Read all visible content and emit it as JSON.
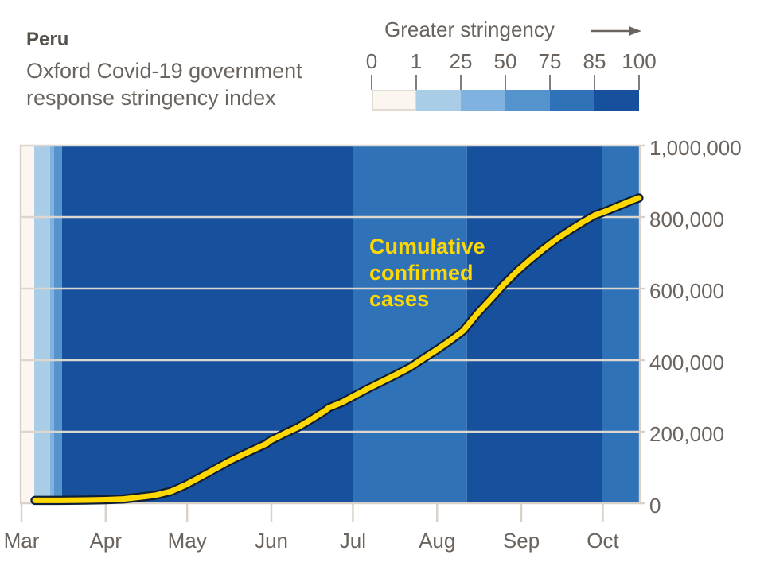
{
  "header": {
    "title": "Peru",
    "subtitle": "Oxford Covid-19 government\nresponse stringency index"
  },
  "legend": {
    "title": "Greater stringency",
    "arrow_icon": "right-arrow",
    "tick_labels": [
      "0",
      "1",
      "25",
      "50",
      "75",
      "85",
      "100"
    ],
    "segments": [
      {
        "range": "0-1",
        "color": "#fbf6ef",
        "border": "#e3dacf"
      },
      {
        "range": "1-25",
        "color": "#a9cde6"
      },
      {
        "range": "25-50",
        "color": "#7fb2de"
      },
      {
        "range": "50-75",
        "color": "#5593cd"
      },
      {
        "range": "75-85",
        "color": "#2f72b8"
      },
      {
        "range": "85-100",
        "color": "#17519e"
      }
    ]
  },
  "colors": {
    "text": "#6b645e",
    "title_text": "#57514b",
    "axis": "#d9d1c7",
    "gridline": "#dcd7d1",
    "line": "#ffd802",
    "line_outline": "#101f36",
    "band_cream": "#fbf6ef",
    "band_dark_blue": "#17519e"
  },
  "chart_data": {
    "type": "line",
    "title": "Peru — Oxford Covid-19 government response stringency index",
    "series_label": "Cumulative\nconfirmed\ncases",
    "x_axis_note": "days measured from Mar 1, 2020",
    "x_ticks": [
      {
        "day": 0,
        "label": "Mar"
      },
      {
        "day": 31,
        "label": "Apr"
      },
      {
        "day": 61,
        "label": "May"
      },
      {
        "day": 92,
        "label": "Jun"
      },
      {
        "day": 122,
        "label": "Jul"
      },
      {
        "day": 153,
        "label": "Aug"
      },
      {
        "day": 184,
        "label": "Sep"
      },
      {
        "day": 214,
        "label": "Oct"
      }
    ],
    "y_ticks": [
      {
        "value": 0,
        "label": "0"
      },
      {
        "value": 200000,
        "label": "200,000"
      },
      {
        "value": 400000,
        "label": "400,000"
      },
      {
        "value": 600000,
        "label": "600,000"
      },
      {
        "value": 800000,
        "label": "800,000"
      },
      {
        "value": 1000000,
        "label": "1,000,000"
      }
    ],
    "ylim": [
      0,
      1000000
    ],
    "xlim_days": [
      -0.6,
      228
    ],
    "grid": true,
    "legend_position": "top-right",
    "stringency_bands": [
      {
        "from_day": -0.6,
        "to_day": 4.7,
        "stringency": "0",
        "color": "#fbf6ef"
      },
      {
        "from_day": 4.7,
        "to_day": 10.5,
        "stringency": "1-25",
        "color": "#a9cde6"
      },
      {
        "from_day": 10.5,
        "to_day": 12.0,
        "stringency": "25-50",
        "color": "#7fb2de"
      },
      {
        "from_day": 12.0,
        "to_day": 14.9,
        "stringency": "50-75",
        "color": "#5593cd"
      },
      {
        "from_day": 14.9,
        "to_day": 121.9,
        "stringency": "85-100",
        "color": "#17519e"
      },
      {
        "from_day": 121.9,
        "to_day": 164.0,
        "stringency": "75-85",
        "color": "#2f72b8"
      },
      {
        "from_day": 164.0,
        "to_day": 213.6,
        "stringency": "85-100",
        "color": "#17519e"
      },
      {
        "from_day": 213.6,
        "to_day": 228.0,
        "stringency": "75-85",
        "color": "#2f72b8"
      }
    ],
    "cases": [
      [
        5,
        8000
      ],
      [
        14,
        8000
      ],
      [
        24,
        9000
      ],
      [
        31,
        10000
      ],
      [
        37.5,
        12000
      ],
      [
        43.4,
        17000
      ],
      [
        49.2,
        22200
      ],
      [
        55.1,
        33300
      ],
      [
        60.4,
        51100
      ],
      [
        65.9,
        73300
      ],
      [
        71.2,
        95600
      ],
      [
        76.5,
        117800
      ],
      [
        81.4,
        135600
      ],
      [
        86.4,
        153300
      ],
      [
        90.2,
        166700
      ],
      [
        91.7,
        175600
      ],
      [
        97.0,
        195600
      ],
      [
        102.0,
        213300
      ],
      [
        106.9,
        235600
      ],
      [
        111.6,
        257800
      ],
      [
        113.1,
        266700
      ],
      [
        118.1,
        282200
      ],
      [
        121.9,
        297800
      ],
      [
        127.4,
        320000
      ],
      [
        132.7,
        340000
      ],
      [
        138.0,
        360000
      ],
      [
        143.0,
        380000
      ],
      [
        147.9,
        404400
      ],
      [
        152.9,
        428900
      ],
      [
        157.6,
        453300
      ],
      [
        162.6,
        482200
      ],
      [
        167.9,
        531100
      ],
      [
        172.8,
        571100
      ],
      [
        177.5,
        611100
      ],
      [
        182.5,
        648900
      ],
      [
        187.5,
        682200
      ],
      [
        192.2,
        711100
      ],
      [
        197.2,
        740000
      ],
      [
        202.1,
        764400
      ],
      [
        206.8,
        786700
      ],
      [
        210.9,
        804400
      ],
      [
        215.6,
        817800
      ],
      [
        220.6,
        833300
      ],
      [
        224.1,
        844400
      ],
      [
        227.3,
        853300
      ]
    ]
  }
}
